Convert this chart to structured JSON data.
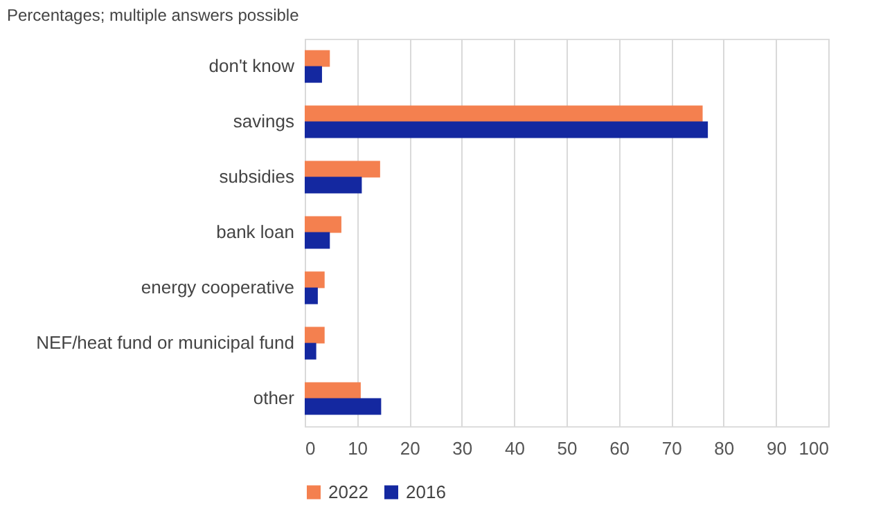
{
  "chart_data": {
    "type": "bar",
    "orientation": "horizontal",
    "title": "Percentages; multiple answers possible",
    "categories": [
      "don't know",
      "savings",
      "subsidies",
      "bank loan",
      "energy cooperative",
      "NEF/heat fund or municipal fund",
      "other"
    ],
    "series": [
      {
        "name": "2022",
        "color": "#f4804f",
        "values": [
          4.8,
          76,
          14.4,
          7.0,
          3.8,
          3.8,
          10.7
        ]
      },
      {
        "name": "2016",
        "color": "#1428a0",
        "values": [
          3.3,
          77,
          10.9,
          4.8,
          2.5,
          2.2,
          14.6
        ]
      }
    ],
    "xlim": [
      0,
      100
    ],
    "xticks": [
      0,
      10,
      20,
      30,
      40,
      50,
      60,
      70,
      80,
      90,
      100
    ],
    "grid": "x",
    "legend": "bottom"
  }
}
